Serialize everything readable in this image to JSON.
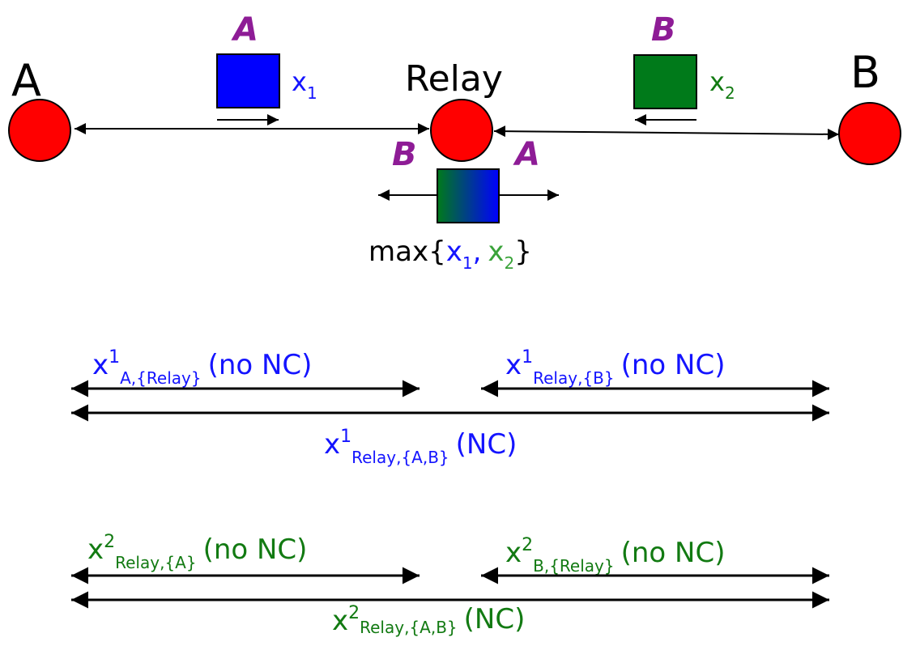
{
  "colors": {
    "node": "#ff0000",
    "packet_a": "#0000ff",
    "packet_b": "#007a1a",
    "tag": "#8e1c96",
    "blue_text": "#1414ff",
    "green_text": "#127a12",
    "black": "#000000"
  },
  "nodes": {
    "a": {
      "label": "A"
    },
    "relay": {
      "label": "Relay"
    },
    "b": {
      "label": "B"
    }
  },
  "packets": {
    "from_a": {
      "tag": "A",
      "var": "x",
      "sub": "1"
    },
    "from_b": {
      "tag": "B",
      "var": "x",
      "sub": "2"
    },
    "coded": {
      "tag_left": "B",
      "tag_right": "A"
    }
  },
  "max_expr": {
    "prefix": "max{",
    "x1": "x",
    "x1_sub": "1",
    "comma": ",",
    "x2": "x",
    "x2_sub": "2",
    "suffix": "}"
  },
  "flows": {
    "x1_a_relay": {
      "base": "x",
      "sup": "1",
      "sub": "A,{Relay}",
      "suffix": "(no NC)"
    },
    "x1_relay_b": {
      "base": "x",
      "sup": "1",
      "sub": "Relay,{B}",
      "suffix": "(no NC)"
    },
    "x1_relay_ab": {
      "base": "x",
      "sup": "1",
      "sub": "Relay,{A,B}",
      "suffix": "(NC)"
    },
    "x2_relay_a": {
      "base": "x",
      "sup": "2",
      "sub": "Relay,{A}",
      "suffix": "(no NC)"
    },
    "x2_b_relay": {
      "base": "x",
      "sup": "2",
      "sub": "B,{Relay}",
      "suffix": "(no NC)"
    },
    "x2_relay_ab": {
      "base": "x",
      "sup": "2",
      "sub": "Relay,{A,B}",
      "suffix": "(NC)"
    }
  }
}
